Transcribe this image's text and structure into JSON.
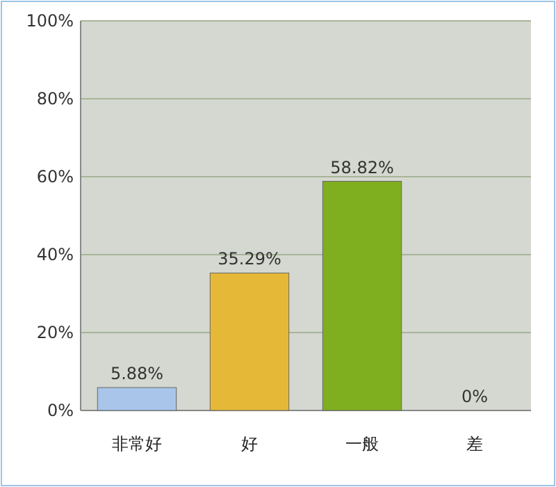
{
  "chart_data": {
    "type": "bar",
    "categories": [
      "非常好",
      "好",
      "一般",
      "差"
    ],
    "values": [
      5.88,
      35.29,
      58.82,
      0
    ],
    "colors": [
      "#a9c5ea",
      "#e6b838",
      "#7fae1e",
      "#f0a07c"
    ],
    "value_labels": [
      "5.88%",
      "35.29%",
      "58.82%",
      "0%"
    ],
    "ylim": [
      0,
      100
    ],
    "yticks": [
      {
        "value": 0,
        "label": "0%"
      },
      {
        "value": 20,
        "label": "20%"
      },
      {
        "value": 40,
        "label": "40%"
      },
      {
        "value": 60,
        "label": "60%"
      },
      {
        "value": 80,
        "label": "80%"
      },
      {
        "value": 100,
        "label": "100%"
      }
    ],
    "grid": "y"
  }
}
